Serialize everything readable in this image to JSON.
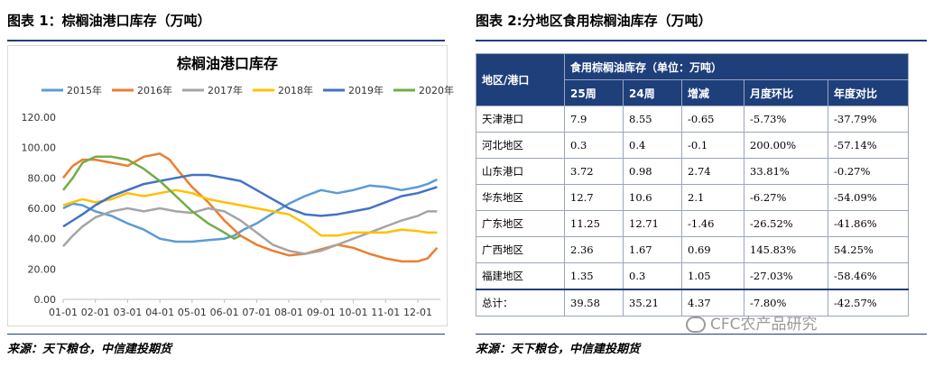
{
  "left_panel": {
    "heading": "图表 1：棕榈油港口库存（万吨）",
    "source": "来源：天下粮仓，中信建投期货"
  },
  "right_panel": {
    "heading": "图表 2:分地区食用棕榈油库存（万吨）",
    "source": "来源：天下粮仓，中信建投期货",
    "table": {
      "corner": "地区/港口",
      "group_header": "食用棕榈油库存（单位：万吨）",
      "columns": [
        "25周",
        "24周",
        "增减",
        "月度环比",
        "年度对比"
      ],
      "rows": [
        [
          "天津港口",
          "7.9",
          "8.55",
          "-0.65",
          "-5.73%",
          "-37.79%"
        ],
        [
          "河北地区",
          "0.3",
          "0.4",
          "-0.1",
          "200.00%",
          "-57.14%"
        ],
        [
          "山东港口",
          "3.72",
          "0.98",
          "2.74",
          "33.81%",
          "-0.27%"
        ],
        [
          "华东地区",
          "12.7",
          "10.6",
          "2.1",
          "-6.27%",
          "-54.09%"
        ],
        [
          "广东地区",
          "11.25",
          "12.71",
          "-1.46",
          "-26.52%",
          "-41.86%"
        ],
        [
          "广西地区",
          "2.36",
          "1.67",
          "0.69",
          "145.83%",
          "54.25%"
        ],
        [
          "福建地区",
          "1.35",
          "0.3",
          "1.05",
          "-27.03%",
          "-58.46%"
        ],
        [
          "总计：",
          "39.58",
          "35.21",
          "4.37",
          "-7.80%",
          "-42.57%"
        ]
      ]
    }
  },
  "watermark": "CFC农产品研究",
  "chart_data": {
    "type": "line",
    "title": "棕榈油港口库存",
    "xlabel": "",
    "ylabel": "",
    "x_ticks": [
      "01-01",
      "02-01",
      "03-01",
      "04-01",
      "05-01",
      "06-01",
      "07-01",
      "08-01",
      "09-01",
      "10-01",
      "11-01",
      "12-01"
    ],
    "y_ticks": [
      "0.00",
      "20.00",
      "40.00",
      "60.00",
      "80.00",
      "100.00",
      "120.00"
    ],
    "ylim": [
      0,
      120
    ],
    "xlim": [
      1,
      12.7
    ],
    "legend_position": "top",
    "grid": false,
    "series": [
      {
        "name": "2015年",
        "color": "#5b9bd5",
        "x": [
          1,
          1.3,
          1.6,
          2,
          2.5,
          3,
          3.5,
          4,
          4.5,
          5,
          5.5,
          6,
          6.3,
          6.6,
          7,
          7.3,
          7.6,
          8,
          8.5,
          9,
          9.5,
          10,
          10.5,
          11,
          11.5,
          12,
          12.3,
          12.6
        ],
        "y": [
          60,
          63,
          62,
          58,
          55,
          50,
          46,
          40,
          38,
          38,
          39,
          40,
          42,
          46,
          50,
          54,
          58,
          63,
          68,
          72,
          70,
          72,
          75,
          74,
          72,
          74,
          76,
          79
        ]
      },
      {
        "name": "2016年",
        "color": "#ed7d31",
        "x": [
          1,
          1.3,
          1.6,
          2,
          2.5,
          3,
          3.5,
          4,
          4.3,
          4.6,
          5,
          5.5,
          6,
          6.5,
          7,
          7.5,
          8,
          8.5,
          9,
          9.5,
          10,
          10.5,
          11,
          11.5,
          12,
          12.3,
          12.6
        ],
        "y": [
          80,
          88,
          92,
          92,
          90,
          88,
          94,
          96,
          92,
          84,
          74,
          64,
          52,
          42,
          36,
          32,
          29,
          30,
          33,
          36,
          34,
          30,
          27,
          25,
          25,
          27,
          34
        ]
      },
      {
        "name": "2017年",
        "color": "#a5a5a5",
        "x": [
          1,
          1.3,
          1.6,
          2,
          2.5,
          3,
          3.5,
          4,
          4.5,
          5,
          5.5,
          6,
          6.5,
          7,
          7.5,
          8,
          8.5,
          9,
          9.5,
          10,
          10.5,
          11,
          11.5,
          12,
          12.3,
          12.6
        ],
        "y": [
          35,
          42,
          48,
          54,
          58,
          60,
          58,
          60,
          58,
          57,
          60,
          58,
          52,
          44,
          36,
          32,
          30,
          32,
          36,
          40,
          44,
          48,
          52,
          55,
          58,
          58
        ]
      },
      {
        "name": "2018年",
        "color": "#ffc000",
        "x": [
          1,
          1.3,
          1.6,
          2,
          2.5,
          3,
          3.5,
          4,
          4.5,
          5,
          5.5,
          6,
          6.5,
          7,
          7.5,
          8,
          8.5,
          9,
          9.5,
          10,
          10.5,
          11,
          11.5,
          12,
          12.3,
          12.6
        ],
        "y": [
          62,
          64,
          66,
          64,
          66,
          70,
          68,
          70,
          72,
          70,
          66,
          64,
          62,
          60,
          58,
          56,
          50,
          42,
          42,
          44,
          44,
          44,
          46,
          45,
          44,
          44
        ]
      },
      {
        "name": "2019年",
        "color": "#4472c4",
        "x": [
          1,
          1.3,
          1.6,
          2,
          2.5,
          3,
          3.5,
          4,
          4.5,
          5,
          5.5,
          6,
          6.5,
          7,
          7.5,
          8,
          8.5,
          9,
          9.5,
          10,
          10.5,
          11,
          11.5,
          12,
          12.3,
          12.6
        ],
        "y": [
          48,
          52,
          56,
          62,
          68,
          72,
          76,
          78,
          80,
          82,
          82,
          80,
          78,
          72,
          66,
          60,
          56,
          55,
          56,
          58,
          60,
          64,
          68,
          70,
          72,
          74
        ]
      },
      {
        "name": "2020年",
        "color": "#70ad47",
        "x": [
          1,
          1.3,
          1.6,
          2,
          2.5,
          3,
          3.5,
          4,
          4.5,
          5,
          5.5,
          6,
          6.3,
          6.5
        ],
        "y": [
          72,
          80,
          90,
          94,
          94,
          92,
          86,
          78,
          68,
          58,
          50,
          44,
          40,
          42
        ]
      }
    ]
  }
}
